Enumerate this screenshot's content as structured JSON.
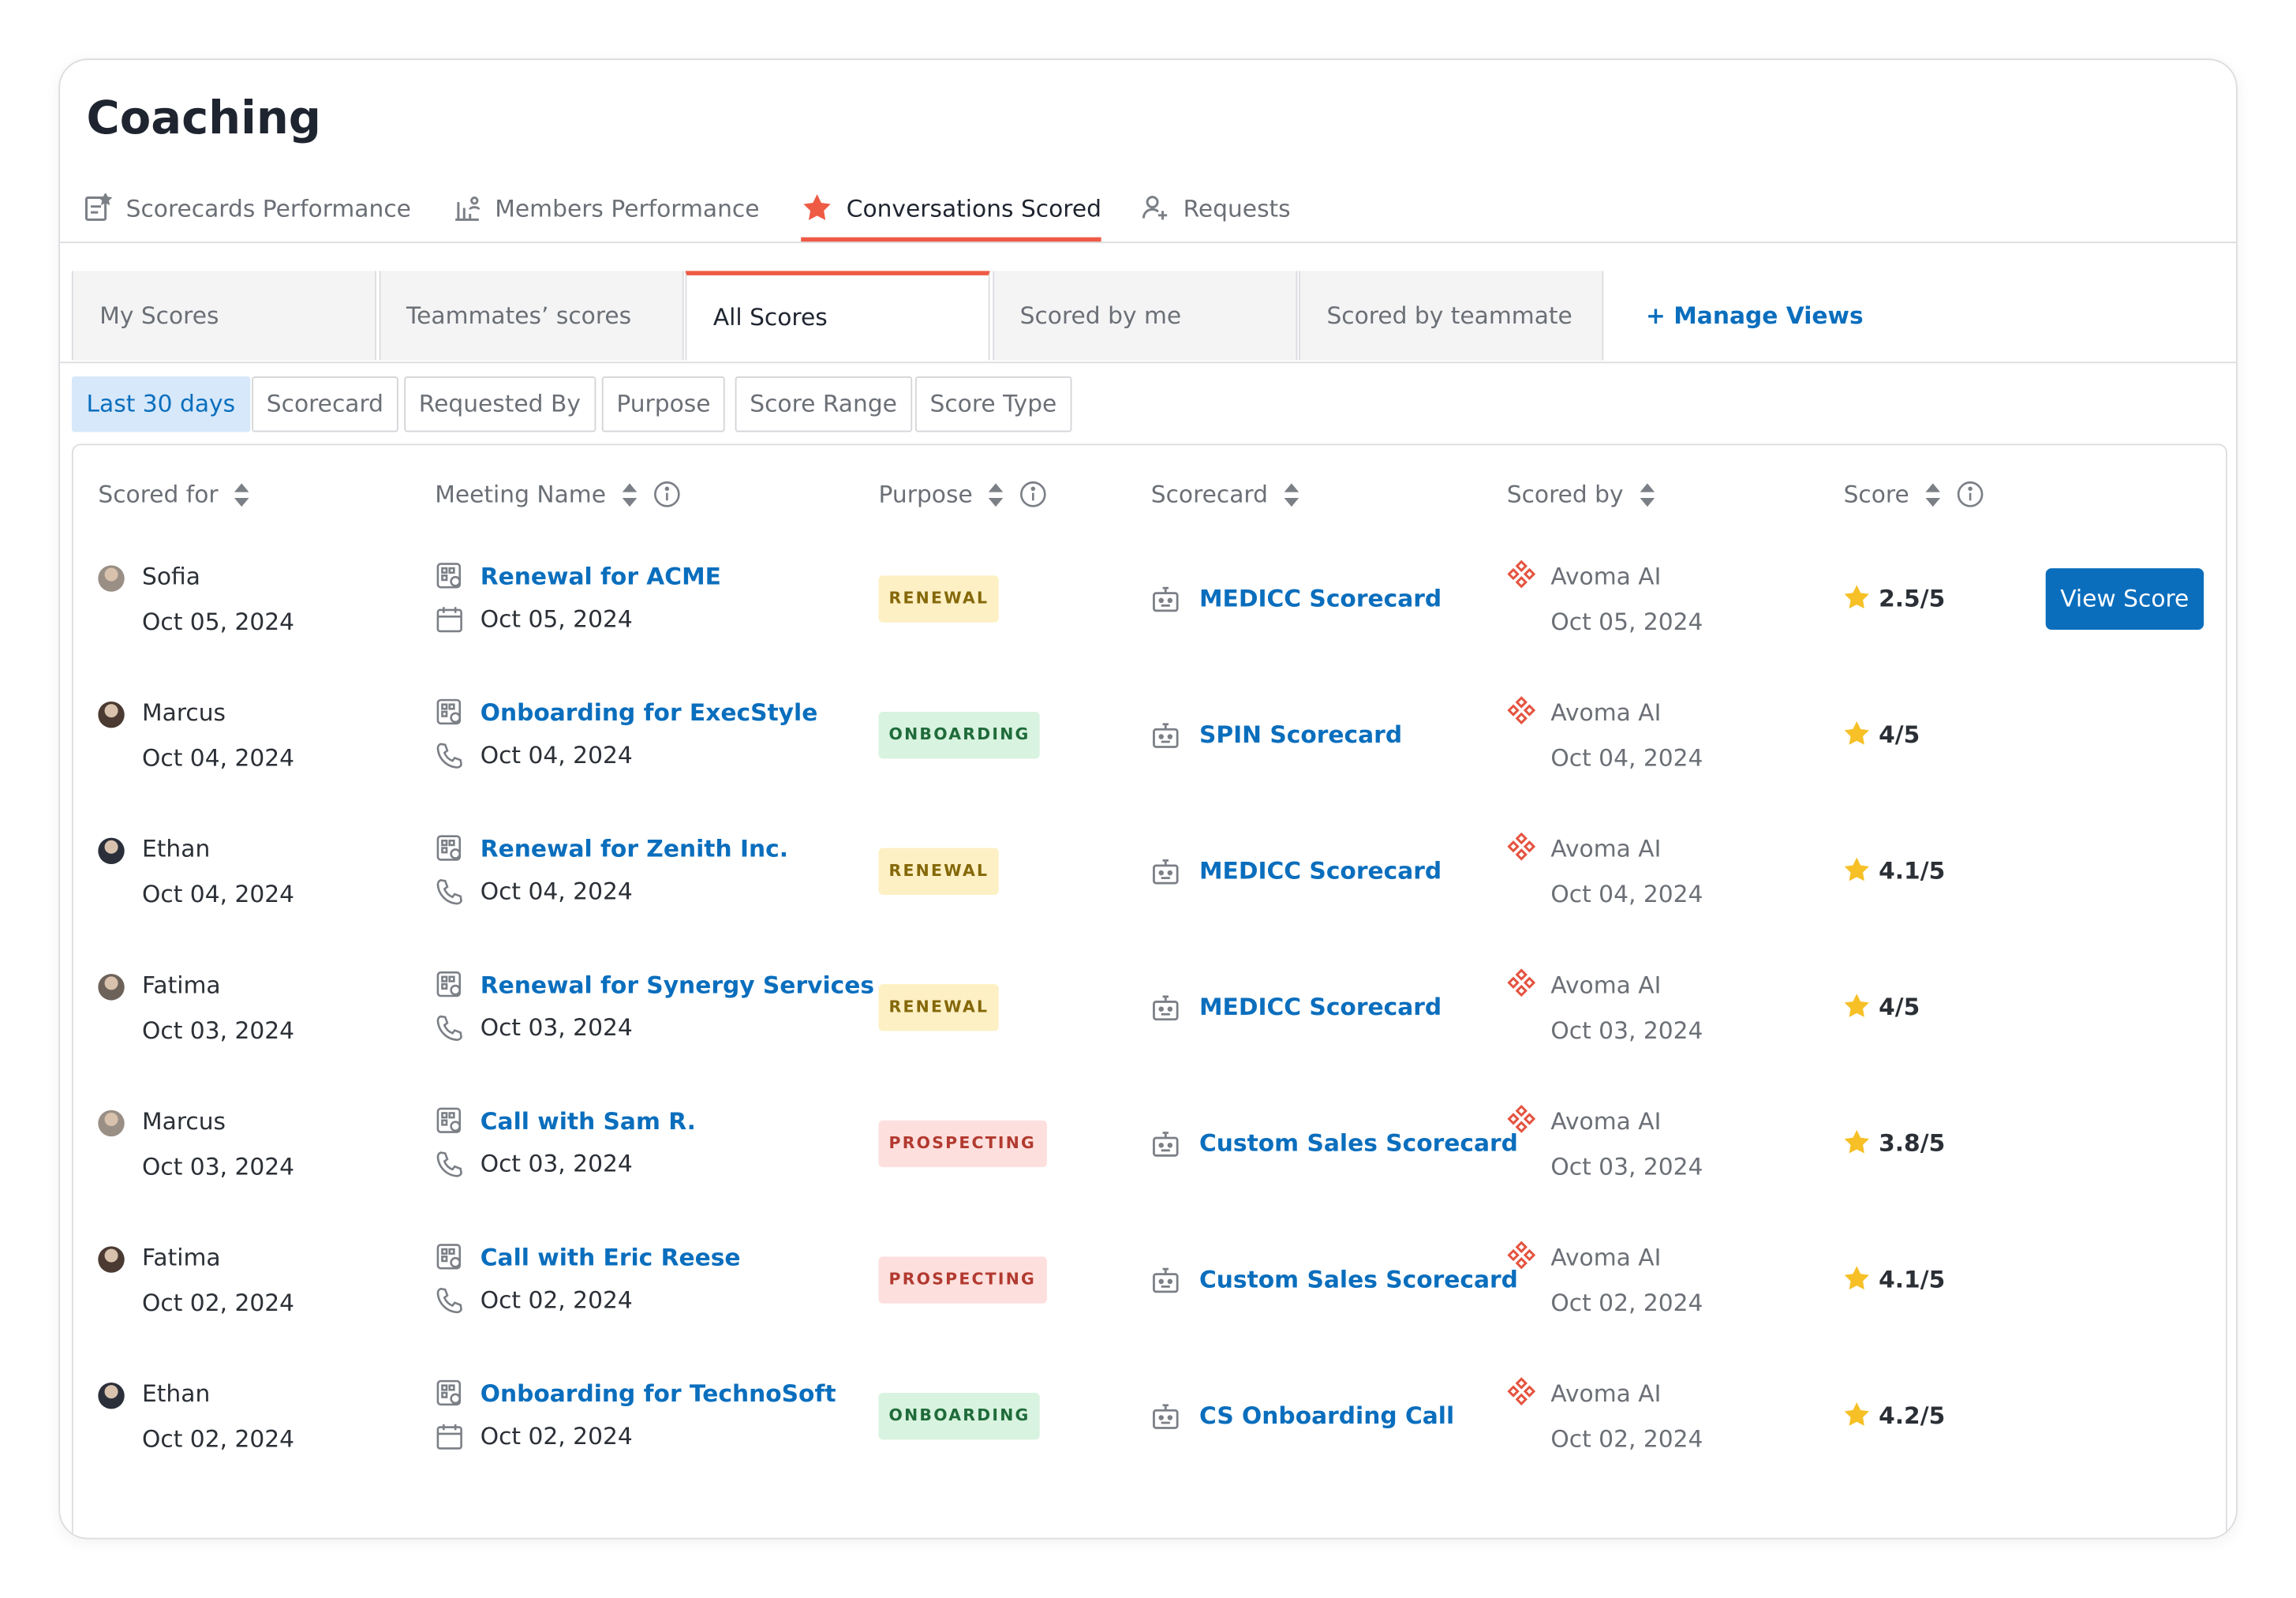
{
  "header": {
    "title": "Coaching"
  },
  "tabs": [
    {
      "label": "Scorecards Performance",
      "active": false
    },
    {
      "label": "Members Performance",
      "active": false
    },
    {
      "label": "Conversations Scored",
      "active": true
    },
    {
      "label": "Requests",
      "active": false
    }
  ],
  "views": [
    {
      "label": "My Scores",
      "active": false
    },
    {
      "label": "Teammates’ scores",
      "active": false
    },
    {
      "label": "All Scores",
      "active": true
    },
    {
      "label": "Scored by me",
      "active": false
    },
    {
      "label": "Scored by teammate",
      "active": false
    }
  ],
  "manage_views": "+ Manage Views",
  "filters": [
    {
      "label": "Last 30 days",
      "active": true
    },
    {
      "label": "Scorecard",
      "active": false
    },
    {
      "label": "Requested By",
      "active": false
    },
    {
      "label": "Purpose",
      "active": false
    },
    {
      "label": "Score Range",
      "active": false
    },
    {
      "label": "Score Type",
      "active": false
    }
  ],
  "purpose_styles": {
    "RENEWAL": {
      "bg": "#fdf0c4",
      "fg": "#85680a"
    },
    "ONBOARDING": {
      "bg": "#d8f3df",
      "fg": "#1f6b3a"
    },
    "PROSPECTING": {
      "bg": "#fde0de",
      "fg": "#b23a2f"
    }
  },
  "table": {
    "columns": [
      {
        "label": "Scored for",
        "info": false
      },
      {
        "label": "Meeting Name",
        "info": true
      },
      {
        "label": "Purpose",
        "info": true
      },
      {
        "label": "Scorecard",
        "info": false
      },
      {
        "label": "Scored by",
        "info": false
      },
      {
        "label": "Score",
        "info": true
      }
    ],
    "action": "View Score",
    "rows": [
      {
        "scored_for": "Sofia",
        "scored_for_date": "Oct 05, 2024",
        "meeting": "Renewal for ACME",
        "meeting_date": "Oct 05, 2024",
        "purpose": "RENEWAL",
        "scorecard": "MEDICC Scorecard",
        "scored_by": "Avoma AI",
        "scored_by_date": "Oct 05, 2024",
        "score": "2.5/5"
      },
      {
        "scored_for": "Marcus",
        "scored_for_date": "Oct 04, 2024",
        "meeting": "Onboarding for ExecStyle",
        "meeting_date": "Oct 04, 2024",
        "purpose": "ONBOARDING",
        "scorecard": "SPIN Scorecard",
        "scored_by": "Avoma AI",
        "scored_by_date": "Oct 04, 2024",
        "score": "4/5"
      },
      {
        "scored_for": "Ethan",
        "scored_for_date": "Oct 04, 2024",
        "meeting": "Renewal for Zenith Inc.",
        "meeting_date": "Oct 04, 2024",
        "purpose": "RENEWAL",
        "scorecard": "MEDICC Scorecard",
        "scored_by": "Avoma AI",
        "scored_by_date": "Oct 04, 2024",
        "score": "4.1/5"
      },
      {
        "scored_for": "Fatima",
        "scored_for_date": "Oct 03, 2024",
        "meeting": "Renewal for Synergy Services",
        "meeting_date": "Oct 03, 2024",
        "purpose": "RENEWAL",
        "scorecard": "MEDICC Scorecard",
        "scored_by": "Avoma AI",
        "scored_by_date": "Oct 03, 2024",
        "score": "4/5"
      },
      {
        "scored_for": "Marcus",
        "scored_for_date": "Oct 03, 2024",
        "meeting": "Call with Sam R.",
        "meeting_date": "Oct 03, 2024",
        "purpose": "PROSPECTING",
        "scorecard": "Custom Sales Scorecard",
        "scored_by": "Avoma AI",
        "scored_by_date": "Oct 03, 2024",
        "score": "3.8/5"
      },
      {
        "scored_for": "Fatima",
        "scored_for_date": "Oct 02, 2024",
        "meeting": "Call with Eric Reese",
        "meeting_date": "Oct 02, 2024",
        "purpose": "PROSPECTING",
        "scorecard": "Custom Sales Scorecard",
        "scored_by": "Avoma AI",
        "scored_by_date": "Oct 02, 2024",
        "score": "4.1/5"
      },
      {
        "scored_for": "Ethan",
        "scored_for_date": "Oct 02, 2024",
        "meeting": "Onboarding for TechnoSoft",
        "meeting_date": "Oct 02, 2024",
        "purpose": "ONBOARDING",
        "scorecard": "CS Onboarding Call",
        "scored_by": "Avoma AI",
        "scored_by_date": "Oct 02, 2024",
        "score": "4.2/5"
      }
    ]
  }
}
